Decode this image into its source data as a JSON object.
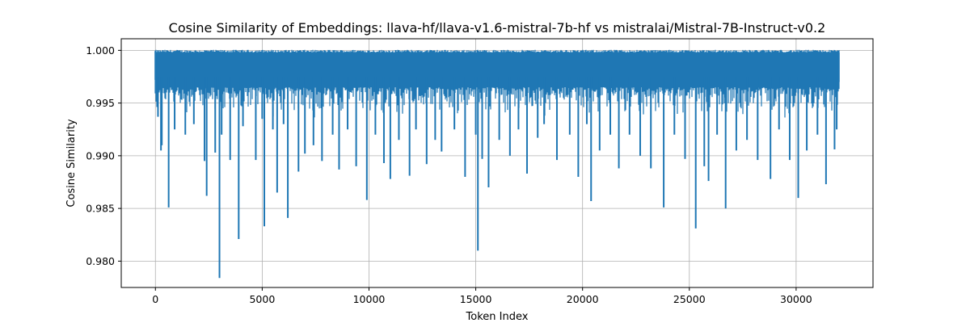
{
  "chart_data": {
    "type": "line",
    "title": "Cosine Similarity of Embeddings: llava-hf/llava-v1.6-mistral-7b-hf vs mistralai/Mistral-7B-Instruct-v0.2",
    "xlabel": "Token Index",
    "ylabel": "Cosine Similarity",
    "xlim": [
      -1600,
      33600
    ],
    "ylim": [
      0.9775,
      1.0011
    ],
    "xticks": [
      0,
      5000,
      10000,
      15000,
      20000,
      25000,
      30000
    ],
    "xtick_labels": [
      "0",
      "5000",
      "10000",
      "15000",
      "20000",
      "25000",
      "30000"
    ],
    "yticks": [
      0.98,
      0.985,
      0.99,
      0.995,
      1.0
    ],
    "ytick_labels": [
      "0.980",
      "0.985",
      "0.990",
      "0.995",
      "1.000"
    ],
    "grid": true,
    "color": "#1f77b4",
    "series": [
      {
        "name": "",
        "x_range": [
          0,
          32000
        ],
        "typical_band": [
          0.9965,
          0.9998
        ],
        "dips": [
          [
            120,
            0.9937
          ],
          [
            260,
            0.9905
          ],
          [
            300,
            0.991
          ],
          [
            620,
            0.9851
          ],
          [
            900,
            0.9925
          ],
          [
            1400,
            0.992
          ],
          [
            1800,
            0.993
          ],
          [
            2300,
            0.9895
          ],
          [
            2400,
            0.9862
          ],
          [
            2800,
            0.9903
          ],
          [
            3000,
            0.9784
          ],
          [
            3100,
            0.992
          ],
          [
            3500,
            0.9896
          ],
          [
            3900,
            0.9821
          ],
          [
            4100,
            0.9928
          ],
          [
            4700,
            0.9896
          ],
          [
            5000,
            0.9935
          ],
          [
            5100,
            0.9833
          ],
          [
            5500,
            0.9925
          ],
          [
            5700,
            0.9865
          ],
          [
            6000,
            0.993
          ],
          [
            6200,
            0.9841
          ],
          [
            6700,
            0.9885
          ],
          [
            7000,
            0.9902
          ],
          [
            7400,
            0.991
          ],
          [
            7800,
            0.9895
          ],
          [
            8300,
            0.992
          ],
          [
            8600,
            0.9887
          ],
          [
            9000,
            0.9925
          ],
          [
            9400,
            0.989
          ],
          [
            9900,
            0.9858
          ],
          [
            10300,
            0.992
          ],
          [
            10700,
            0.9893
          ],
          [
            11000,
            0.9878
          ],
          [
            11400,
            0.9915
          ],
          [
            11900,
            0.9881
          ],
          [
            12200,
            0.9925
          ],
          [
            12700,
            0.9892
          ],
          [
            13100,
            0.9915
          ],
          [
            13400,
            0.9904
          ],
          [
            14000,
            0.9925
          ],
          [
            14500,
            0.988
          ],
          [
            15000,
            0.992
          ],
          [
            15100,
            0.981
          ],
          [
            15300,
            0.9897
          ],
          [
            15600,
            0.987
          ],
          [
            16100,
            0.9915
          ],
          [
            16600,
            0.99
          ],
          [
            17000,
            0.9925
          ],
          [
            17400,
            0.9883
          ],
          [
            17900,
            0.9917
          ],
          [
            18200,
            0.993
          ],
          [
            18800,
            0.9896
          ],
          [
            19400,
            0.992
          ],
          [
            19800,
            0.988
          ],
          [
            20200,
            0.993
          ],
          [
            20400,
            0.9857
          ],
          [
            20800,
            0.9905
          ],
          [
            21300,
            0.992
          ],
          [
            21700,
            0.9888
          ],
          [
            22200,
            0.992
          ],
          [
            22700,
            0.99
          ],
          [
            23200,
            0.9888
          ],
          [
            23800,
            0.9851
          ],
          [
            24300,
            0.992
          ],
          [
            24800,
            0.9897
          ],
          [
            25300,
            0.9831
          ],
          [
            25700,
            0.989
          ],
          [
            25900,
            0.9876
          ],
          [
            26300,
            0.992
          ],
          [
            26700,
            0.985
          ],
          [
            27200,
            0.9905
          ],
          [
            27700,
            0.9915
          ],
          [
            28200,
            0.9896
          ],
          [
            28800,
            0.9878
          ],
          [
            29200,
            0.9925
          ],
          [
            29700,
            0.9896
          ],
          [
            30100,
            0.986
          ],
          [
            30500,
            0.9905
          ],
          [
            31000,
            0.992
          ],
          [
            31400,
            0.9873
          ],
          [
            31800,
            0.9906
          ],
          [
            31900,
            0.9925
          ]
        ]
      }
    ]
  }
}
